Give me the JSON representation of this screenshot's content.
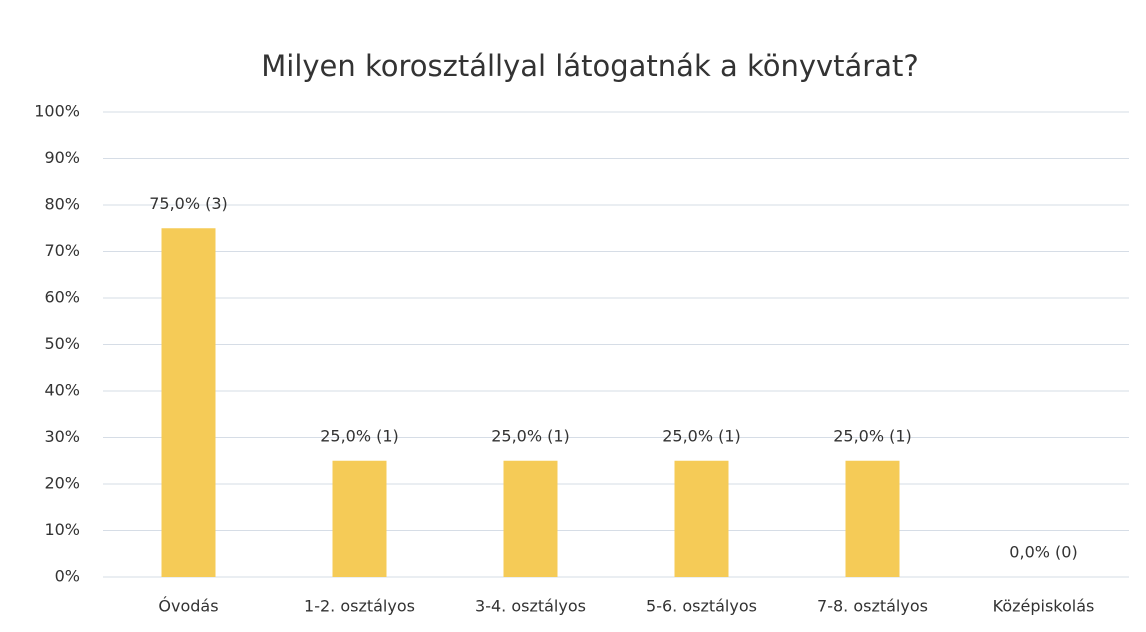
{
  "chart_data": {
    "type": "bar",
    "title": "Milyen korosztállyal látogatnák a könyvtárat?",
    "categories": [
      "Óvodás",
      "1-2. osztályos",
      "3-4. osztályos",
      "5-6. osztályos",
      "7-8. osztályos",
      "Középiskolás"
    ],
    "values": [
      75,
      25,
      25,
      25,
      25,
      0
    ],
    "value_labels": [
      "75,0% (3)",
      "25,0% (1)",
      "25,0% (1)",
      "25,0% (1)",
      "25,0% (1)",
      "0,0% (0)"
    ],
    "color": "#f5cb57",
    "ylim": [
      0,
      100
    ],
    "yticks": [
      {
        "value": 0,
        "label": "0%"
      },
      {
        "value": 10,
        "label": "10%"
      },
      {
        "value": 20,
        "label": "20%"
      },
      {
        "value": 30,
        "label": "30%"
      },
      {
        "value": 40,
        "label": "40%"
      },
      {
        "value": 50,
        "label": "50%"
      },
      {
        "value": 60,
        "label": "60%"
      },
      {
        "value": 70,
        "label": "70%"
      },
      {
        "value": 80,
        "label": "80%"
      },
      {
        "value": 90,
        "label": "90%"
      },
      {
        "value": 100,
        "label": "100%"
      }
    ],
    "grid": true
  }
}
